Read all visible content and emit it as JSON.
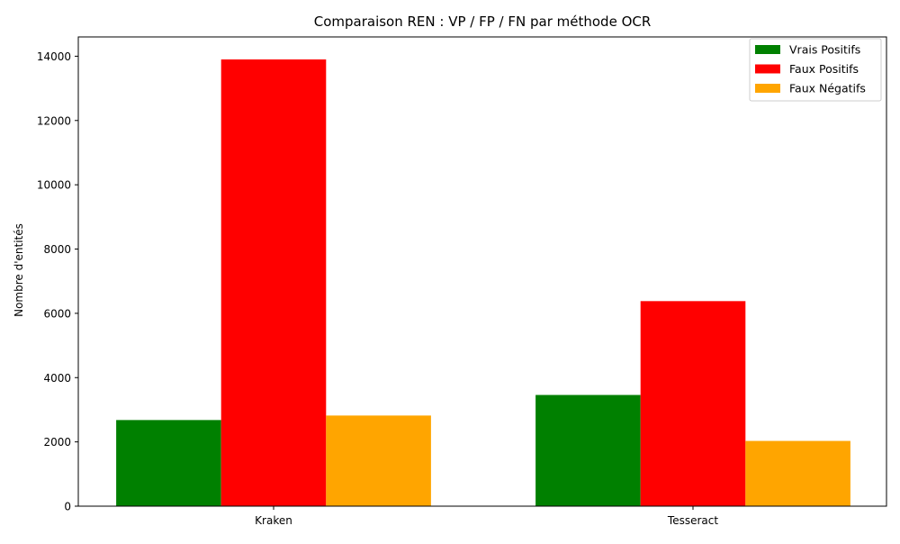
{
  "chart_data": {
    "type": "bar",
    "title": "Comparaison REN : VP / FP / FN par méthode OCR",
    "xlabel": "",
    "ylabel": "Nombre d'entités",
    "categories": [
      "Kraken",
      "Tesseract"
    ],
    "series": [
      {
        "name": "Vrais Positifs",
        "color": "#008000",
        "values": [
          2680,
          3460
        ]
      },
      {
        "name": "Faux Positifs",
        "color": "#ff0000",
        "values": [
          13900,
          6380
        ]
      },
      {
        "name": "Faux Négatifs",
        "color": "#ffa500",
        "values": [
          2820,
          2030
        ]
      }
    ],
    "ylim": [
      0,
      14600
    ],
    "yticks": [
      0,
      2000,
      4000,
      6000,
      8000,
      10000,
      12000,
      14000
    ],
    "grid": false,
    "legend_position": "top-right"
  }
}
